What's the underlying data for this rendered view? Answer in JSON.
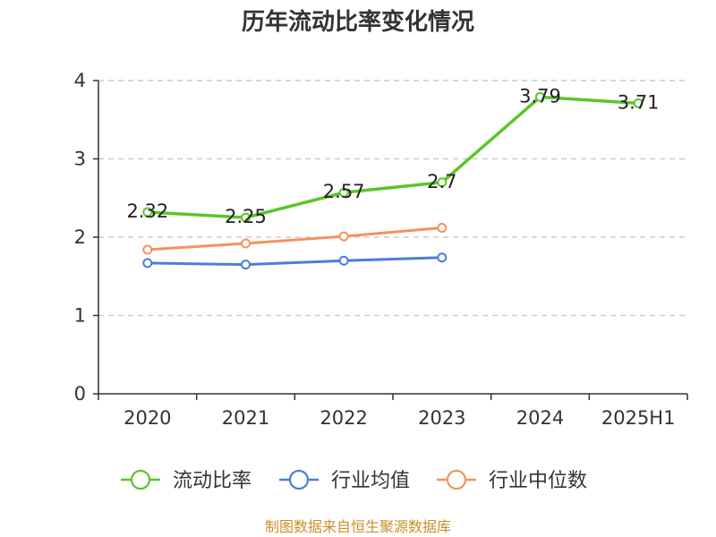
{
  "chart_data": {
    "type": "line",
    "title": "历年流动比率变化情况",
    "categories": [
      "2020",
      "2021",
      "2022",
      "2023",
      "2024",
      "2025H1"
    ],
    "ylim": [
      0,
      4
    ],
    "yticks": [
      "0",
      "1",
      "2",
      "3",
      "4"
    ],
    "grid": true,
    "legend_position": "bottom",
    "series": [
      {
        "name": "流动比率",
        "color": "#5cc42b",
        "values": [
          2.32,
          2.25,
          2.57,
          2.7,
          3.79,
          3.71
        ],
        "labels": [
          "2.32",
          "2.25",
          "2.57",
          "2.7",
          "3.79",
          "3.71"
        ]
      },
      {
        "name": "行业均值",
        "color": "#4a7fd9",
        "values": [
          1.67,
          1.65,
          1.7,
          1.74,
          null,
          null
        ]
      },
      {
        "name": "行业中位数",
        "color": "#f5925e",
        "values": [
          1.84,
          1.92,
          2.01,
          2.12,
          null,
          null
        ]
      }
    ],
    "source": "制图数据来自恒生聚源数据库"
  }
}
